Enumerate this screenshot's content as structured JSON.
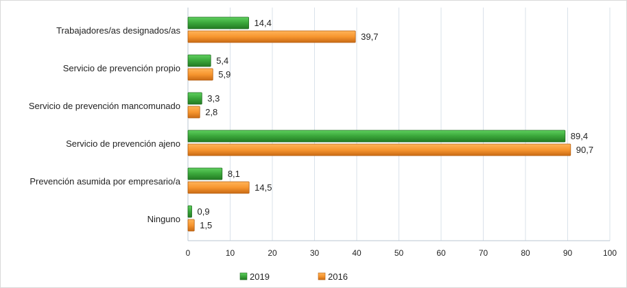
{
  "chart_data": {
    "type": "bar",
    "orientation": "horizontal",
    "categories": [
      "Trabajadores/as designados/as",
      "Servicio de prevención propio",
      "Servicio de prevención mancomunado",
      "Servicio de prevención ajeno",
      "Prevención asumida por empresario/a",
      "Ninguno"
    ],
    "series": [
      {
        "name": "2019",
        "color": "#3aa63a",
        "values": [
          14.4,
          5.4,
          3.3,
          89.4,
          8.1,
          0.9
        ],
        "labels": [
          "14,4",
          "5,4",
          "3,3",
          "89,4",
          "8,1",
          "0,9"
        ]
      },
      {
        "name": "2016",
        "color": "#f7962f",
        "values": [
          39.7,
          5.9,
          2.8,
          90.7,
          14.5,
          1.5
        ],
        "labels": [
          "39,7",
          "5,9",
          "2,8",
          "90,7",
          "14,5",
          "1,5"
        ]
      }
    ],
    "xlim": [
      0,
      100
    ],
    "xticks": [
      "0",
      "10",
      "20",
      "30",
      "40",
      "50",
      "60",
      "70",
      "80",
      "90",
      "100"
    ],
    "grid": true,
    "legend": "bottom"
  }
}
